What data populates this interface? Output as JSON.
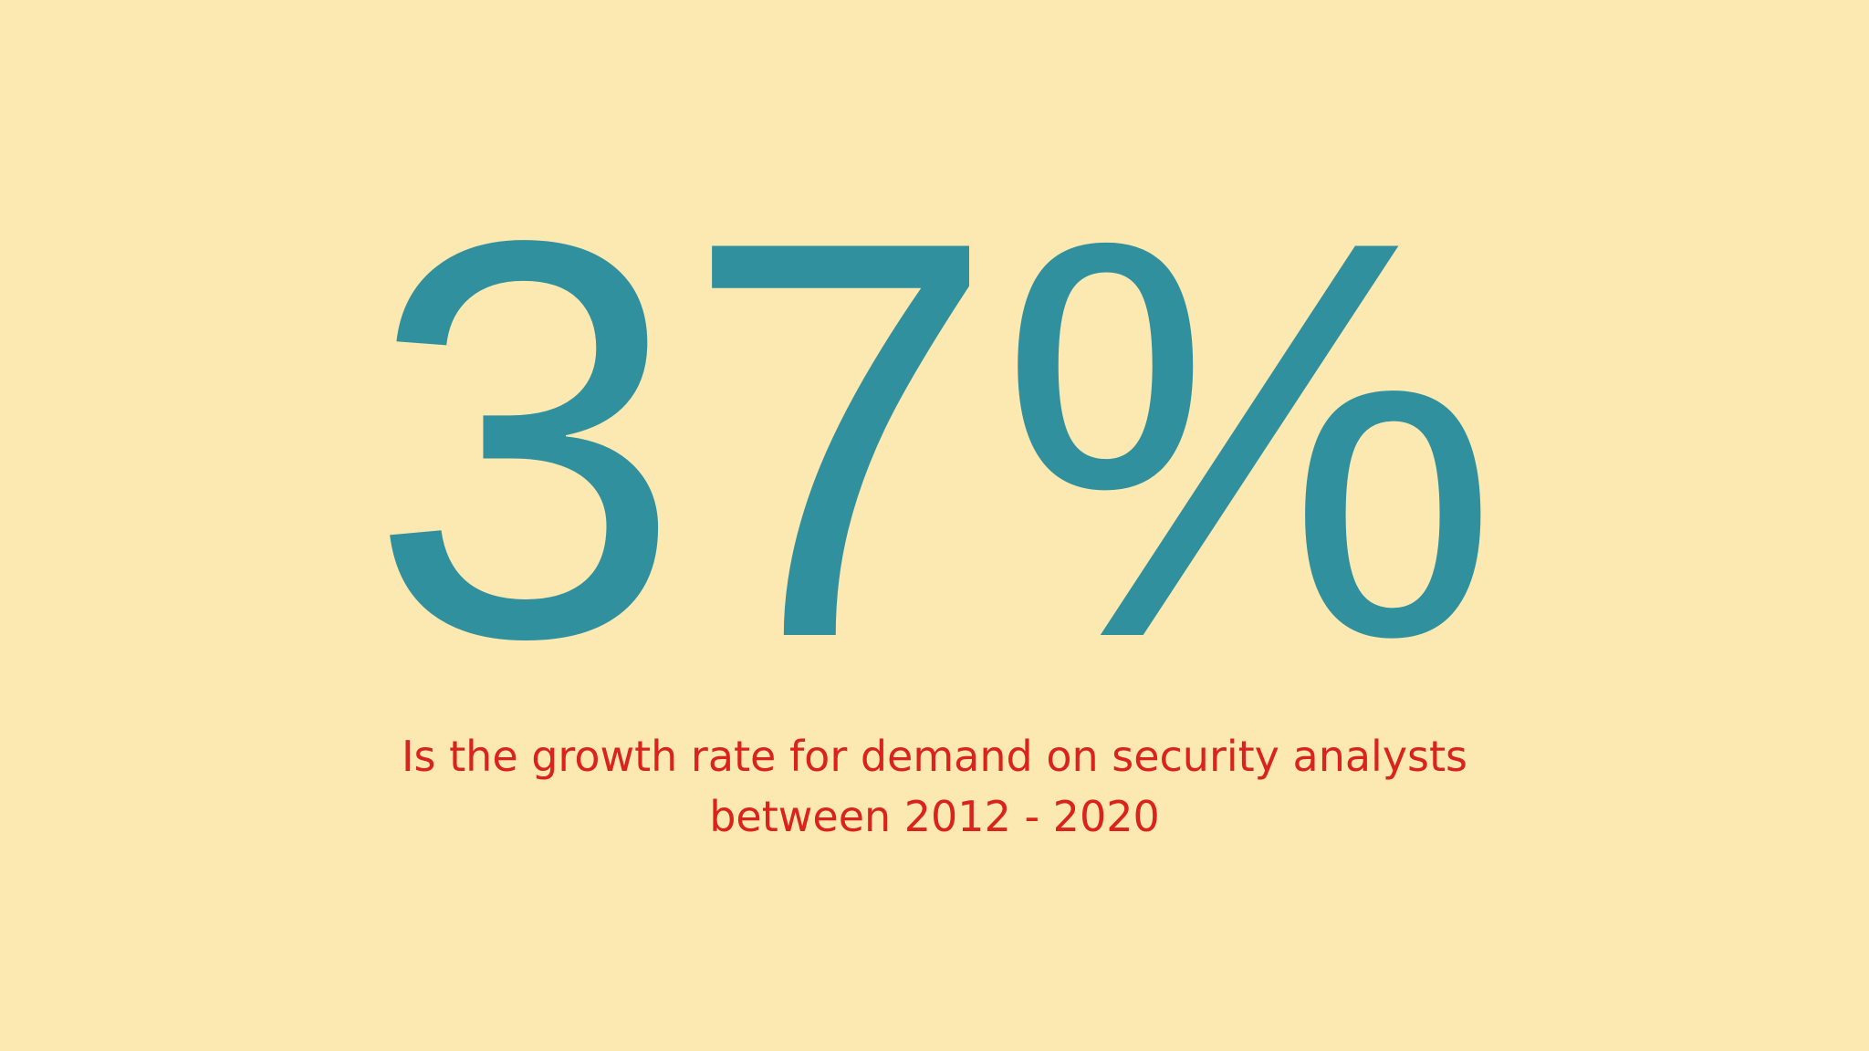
{
  "slide": {
    "stat": "37%",
    "caption_line_1": "Is the growth rate for demand on security analysts",
    "caption_line_2": "between 2012 - 2020",
    "colors": {
      "background": "#fbe9b1",
      "stat": "#31909e",
      "caption": "#d9231c"
    }
  }
}
